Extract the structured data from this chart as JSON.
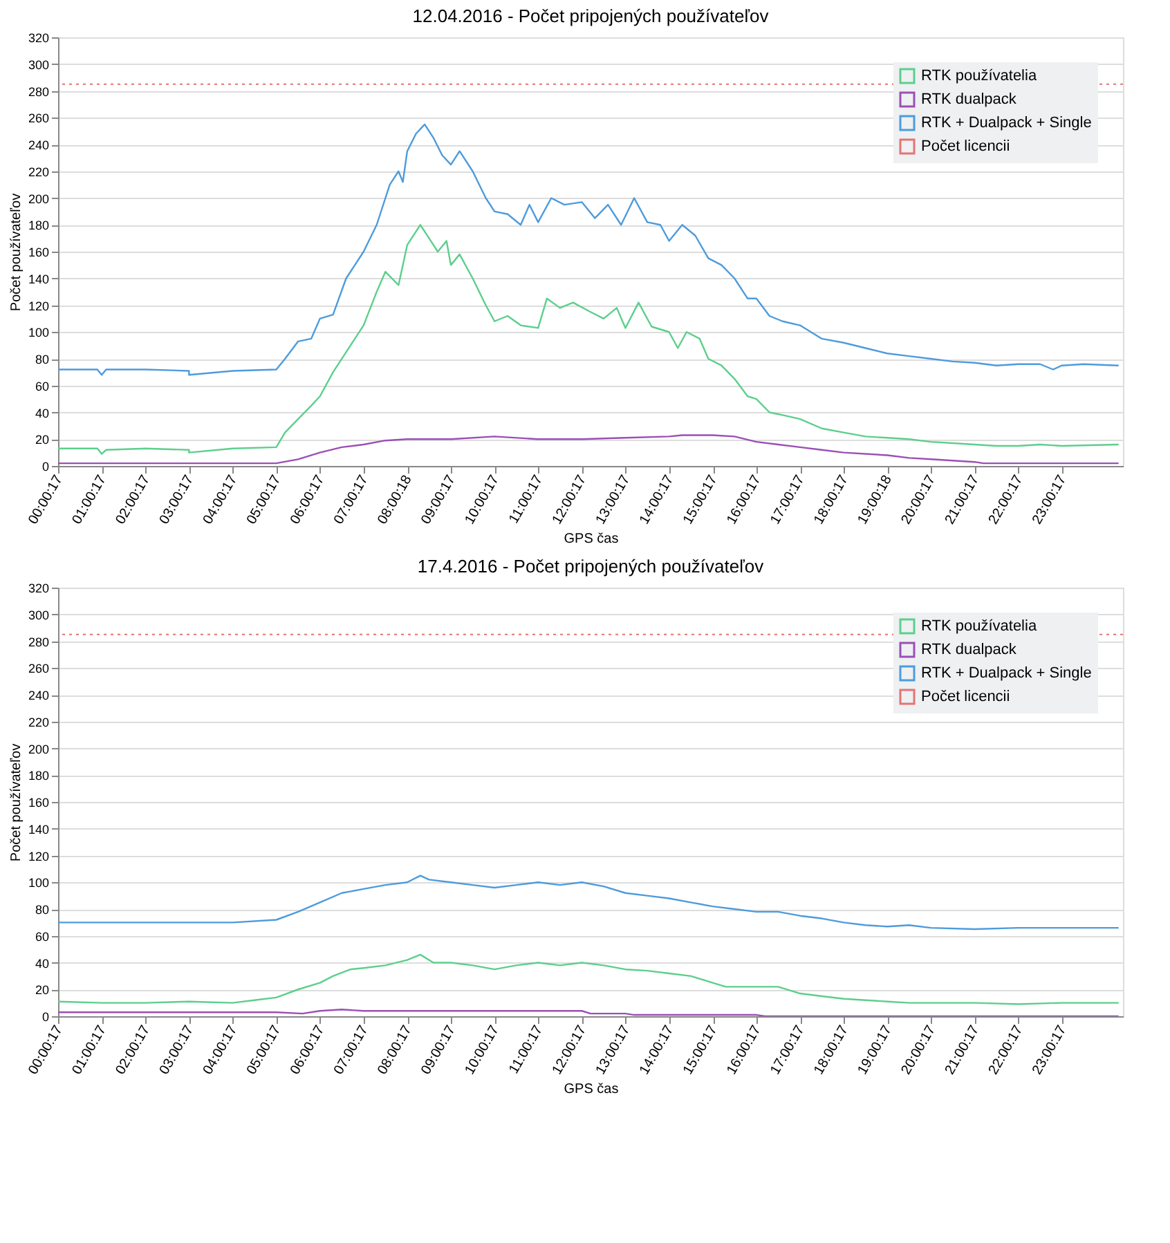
{
  "chart_data": [
    {
      "type": "line",
      "title": "12.04.2016 - Počet pripojených používateľov",
      "xlabel": "GPS čas",
      "ylabel": "Počet používateľov",
      "xlim": [
        0,
        24.4
      ],
      "ylim": [
        0,
        320
      ],
      "yticks": [
        0,
        20,
        40,
        60,
        80,
        100,
        120,
        140,
        160,
        180,
        200,
        220,
        240,
        260,
        280,
        300,
        320
      ],
      "xticks": [
        {
          "value": 0.0047,
          "label": "00:00:17"
        },
        {
          "value": 1.0047,
          "label": "01:00:17"
        },
        {
          "value": 2.0047,
          "label": "02:00:17"
        },
        {
          "value": 3.0047,
          "label": "03:00:17"
        },
        {
          "value": 4.0047,
          "label": "04:00:17"
        },
        {
          "value": 5.0047,
          "label": "05:00:17"
        },
        {
          "value": 6.0047,
          "label": "06:00:17"
        },
        {
          "value": 7.0047,
          "label": "07:00:17"
        },
        {
          "value": 8.005,
          "label": "08:00:18"
        },
        {
          "value": 9.0047,
          "label": "09:00:17"
        },
        {
          "value": 10.0047,
          "label": "10:00:17"
        },
        {
          "value": 11.0047,
          "label": "11:00:17"
        },
        {
          "value": 12.0047,
          "label": "12:00:17"
        },
        {
          "value": 13.0047,
          "label": "13:00:17"
        },
        {
          "value": 14.0047,
          "label": "14:00:17"
        },
        {
          "value": 15.0047,
          "label": "15:00:17"
        },
        {
          "value": 16.0047,
          "label": "16:00:17"
        },
        {
          "value": 17.0047,
          "label": "17:00:17"
        },
        {
          "value": 18.0047,
          "label": "18:00:17"
        },
        {
          "value": 19.005,
          "label": "19:00:18"
        },
        {
          "value": 20.0047,
          "label": "20:00:17"
        },
        {
          "value": 21.0047,
          "label": "21:00:17"
        },
        {
          "value": 22.0047,
          "label": "22:00:17"
        },
        {
          "value": 23.0047,
          "label": "23:00:17"
        }
      ],
      "grid": "y",
      "legend": "top right",
      "marker": "none",
      "line_style": "solid",
      "series": [
        {
          "name": "RTK používatelia",
          "color": "#5ccf8c",
          "x": [
            0,
            0.9,
            1.0,
            1.1,
            2,
            3,
            3.0,
            4,
            5,
            5.2,
            5.5,
            5.8,
            6.0,
            6.3,
            6.6,
            7,
            7.3,
            7.5,
            7.8,
            8.0,
            8.3,
            8.5,
            8.7,
            8.9,
            9.0,
            9.2,
            9.5,
            9.8,
            10.0,
            10.3,
            10.6,
            11.0,
            11.2,
            11.5,
            11.8,
            12.2,
            12.5,
            12.8,
            13.0,
            13.3,
            13.6,
            14.0,
            14.2,
            14.4,
            14.7,
            14.9,
            15.2,
            15.5,
            15.8,
            16.0,
            16.3,
            16.6,
            17.0,
            17.5,
            18,
            18.5,
            19,
            19.5,
            20,
            20.5,
            21,
            21.5,
            22,
            22.5,
            23,
            24.3
          ],
          "values": [
            13,
            13,
            9,
            12,
            13,
            12,
            10,
            13,
            14,
            25,
            35,
            45,
            52,
            70,
            85,
            105,
            130,
            145,
            135,
            165,
            180,
            170,
            160,
            168,
            150,
            158,
            140,
            120,
            108,
            112,
            105,
            103,
            125,
            118,
            122,
            115,
            110,
            118,
            103,
            122,
            104,
            100,
            88,
            100,
            95,
            80,
            75,
            65,
            52,
            50,
            40,
            38,
            35,
            28,
            25,
            22,
            21,
            20,
            18,
            17,
            16,
            15,
            15,
            16,
            15,
            16
          ]
        },
        {
          "name": "RTK dualpack",
          "color": "#9b4fb5",
          "x": [
            0,
            4.5,
            5,
            5.5,
            6,
            6.5,
            7,
            7.5,
            8,
            9,
            10,
            11,
            12,
            13,
            14,
            14.3,
            15,
            15.5,
            16,
            16.5,
            17,
            17.5,
            18,
            19,
            19.5,
            20,
            20.5,
            21.0,
            21.2,
            24.3
          ],
          "values": [
            2,
            2,
            2,
            5,
            10,
            14,
            16,
            19,
            20,
            20,
            22,
            20,
            20,
            21,
            22,
            23,
            23,
            22,
            18,
            16,
            14,
            12,
            10,
            8,
            6,
            5,
            4,
            3,
            2,
            2
          ]
        },
        {
          "name": "RTK + Dualpack + Single",
          "color": "#4d9bdc",
          "x": [
            0,
            0.9,
            1.0,
            1.1,
            2,
            3,
            3.0,
            4,
            5,
            5.2,
            5.5,
            5.8,
            6.0,
            6.3,
            6.6,
            7,
            7.3,
            7.6,
            7.8,
            7.9,
            8.0,
            8.2,
            8.4,
            8.6,
            8.8,
            9.0,
            9.2,
            9.5,
            9.8,
            10,
            10.3,
            10.6,
            10.8,
            11.0,
            11.3,
            11.6,
            12,
            12.3,
            12.6,
            12.9,
            13.2,
            13.5,
            13.8,
            14.0,
            14.3,
            14.6,
            14.9,
            15.2,
            15.5,
            15.8,
            16.0,
            16.3,
            16.6,
            17.0,
            17.5,
            18.0,
            18.5,
            19,
            19.5,
            20,
            20.5,
            21,
            21.5,
            22,
            22.5,
            22.8,
            23,
            23.5,
            24.3
          ],
          "values": [
            72,
            72,
            68,
            72,
            72,
            71,
            68,
            71,
            72,
            80,
            93,
            95,
            110,
            113,
            140,
            160,
            180,
            210,
            220,
            212,
            235,
            248,
            255,
            245,
            232,
            225,
            235,
            220,
            200,
            190,
            188,
            180,
            195,
            182,
            200,
            195,
            197,
            185,
            195,
            180,
            200,
            182,
            180,
            168,
            180,
            172,
            155,
            150,
            140,
            125,
            125,
            112,
            108,
            105,
            95,
            92,
            88,
            84,
            82,
            80,
            78,
            77,
            75,
            76,
            76,
            72,
            75,
            76,
            75
          ]
        }
      ],
      "ref_lines": [
        {
          "axis": "y",
          "value": 285,
          "label": "Počet licencii",
          "color": "#e57373",
          "line_style": "dotted"
        }
      ]
    },
    {
      "type": "line",
      "title": "17.4.2016 - Počet pripojených používateľov",
      "xlabel": "GPS čas",
      "ylabel": "Počet používateľov",
      "xlim": [
        0,
        24.4
      ],
      "ylim": [
        0,
        320
      ],
      "yticks": [
        0,
        20,
        40,
        60,
        80,
        100,
        120,
        140,
        160,
        180,
        200,
        220,
        240,
        260,
        280,
        300,
        320
      ],
      "xticks": [
        {
          "value": 0.0047,
          "label": "00:00:17"
        },
        {
          "value": 1.0047,
          "label": "01:00:17"
        },
        {
          "value": 2.0047,
          "label": "02:00:17"
        },
        {
          "value": 3.0047,
          "label": "03:00:17"
        },
        {
          "value": 4.0047,
          "label": "04:00:17"
        },
        {
          "value": 5.0047,
          "label": "05:00:17"
        },
        {
          "value": 6.0047,
          "label": "06:00:17"
        },
        {
          "value": 7.0047,
          "label": "07:00:17"
        },
        {
          "value": 8.0047,
          "label": "08:00:17"
        },
        {
          "value": 9.0047,
          "label": "09:00:17"
        },
        {
          "value": 10.0047,
          "label": "10:00:17"
        },
        {
          "value": 11.0047,
          "label": "11:00:17"
        },
        {
          "value": 12.0047,
          "label": "12:00:17"
        },
        {
          "value": 13.0047,
          "label": "13:00:17"
        },
        {
          "value": 14.0047,
          "label": "14:00:17"
        },
        {
          "value": 15.0047,
          "label": "15:00:17"
        },
        {
          "value": 16.0047,
          "label": "16:00:17"
        },
        {
          "value": 17.0047,
          "label": "17:00:17"
        },
        {
          "value": 18.0047,
          "label": "18:00:17"
        },
        {
          "value": 19.0047,
          "label": "19:00:17"
        },
        {
          "value": 20.0047,
          "label": "20:00:17"
        },
        {
          "value": 21.0047,
          "label": "21:00:17"
        },
        {
          "value": 22.0047,
          "label": "22:00:17"
        },
        {
          "value": 23.0047,
          "label": "23:00:17"
        }
      ],
      "grid": "y",
      "legend": "top right",
      "marker": "none",
      "line_style": "solid",
      "series": [
        {
          "name": "RTK používatelia",
          "color": "#5ccf8c",
          "x": [
            0,
            1,
            2,
            3,
            4,
            4.5,
            5,
            5.5,
            6,
            6.3,
            6.7,
            7,
            7.5,
            8,
            8.3,
            8.6,
            9,
            9.5,
            10,
            10.5,
            11,
            11.5,
            12,
            12.5,
            13,
            13.5,
            14,
            14.5,
            15,
            15.3,
            16,
            16.5,
            17,
            17.5,
            18,
            18.5,
            19,
            19.5,
            20,
            21,
            22,
            23,
            24.3
          ],
          "values": [
            11,
            10,
            10,
            11,
            10,
            12,
            14,
            20,
            25,
            30,
            35,
            36,
            38,
            42,
            46,
            40,
            40,
            38,
            35,
            38,
            40,
            38,
            40,
            38,
            35,
            34,
            32,
            30,
            25,
            22,
            22,
            22,
            17,
            15,
            13,
            12,
            11,
            10,
            10,
            10,
            9,
            10,
            10
          ]
        },
        {
          "name": "RTK dualpack",
          "color": "#9b4fb5",
          "x": [
            0,
            5,
            5.6,
            6,
            6.5,
            7,
            8,
            12,
            12.2,
            13,
            13.2,
            16,
            16.2,
            24.3
          ],
          "values": [
            3,
            3,
            2,
            4,
            5,
            4,
            4,
            4,
            2,
            2,
            1,
            1,
            0,
            0
          ]
        },
        {
          "name": "RTK + Dualpack + Single",
          "color": "#4d9bdc",
          "x": [
            0,
            1,
            2,
            3,
            4,
            5,
            5.5,
            6,
            6.5,
            7,
            7.5,
            8,
            8.3,
            8.5,
            9,
            9.5,
            10,
            10.5,
            11,
            11.5,
            12,
            12.5,
            13,
            13.5,
            14,
            14.5,
            15,
            15.5,
            16,
            16.5,
            17,
            17.5,
            18,
            18.5,
            19,
            19.5,
            20,
            21,
            22,
            23,
            24.3
          ],
          "values": [
            70,
            70,
            70,
            70,
            70,
            72,
            78,
            85,
            92,
            95,
            98,
            100,
            105,
            102,
            100,
            98,
            96,
            98,
            100,
            98,
            100,
            97,
            92,
            90,
            88,
            85,
            82,
            80,
            78,
            78,
            75,
            73,
            70,
            68,
            67,
            68,
            66,
            65,
            66,
            66,
            66
          ]
        }
      ],
      "ref_lines": [
        {
          "axis": "y",
          "value": 285,
          "label": "Počet licencii",
          "color": "#e57373",
          "line_style": "dotted"
        }
      ]
    }
  ]
}
